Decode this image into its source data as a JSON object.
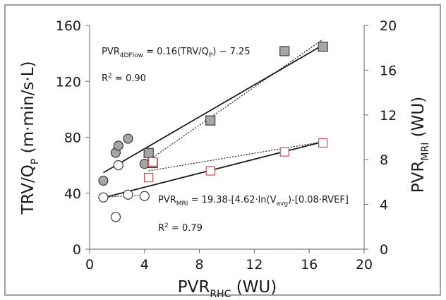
{
  "chart_data": {
    "type": "scatter",
    "x_axis": {
      "label": "PVR",
      "label_subscript": "RHC",
      "label_suffix": " (WU)",
      "range": [
        0,
        20
      ],
      "ticks": [
        "0",
        "4",
        "8",
        "12",
        "16",
        "20"
      ]
    },
    "y_axis_left": {
      "label": "TRV/Q",
      "label_subscript": "P",
      "label_suffix": " (m·min/s·L)",
      "range": [
        0,
        160
      ],
      "ticks": [
        "0",
        "40",
        "80",
        "120",
        "160"
      ]
    },
    "y_axis_right": {
      "label": "PVR",
      "label_subscript": "MRI",
      "label_suffix": " (WU)",
      "range": [
        0,
        20
      ],
      "ticks": [
        "0",
        "4",
        "8",
        "12",
        "16",
        "20"
      ]
    },
    "series": [
      {
        "marker": "circle-gray",
        "axis": "left",
        "points": [
          [
            1.0,
            49
          ],
          [
            1.9,
            69
          ],
          [
            2.1,
            74
          ],
          [
            2.8,
            79
          ],
          [
            4.0,
            61
          ]
        ]
      },
      {
        "marker": "circle-open",
        "axis": "left",
        "points": [
          [
            1.0,
            37
          ],
          [
            1.9,
            23
          ],
          [
            2.1,
            60
          ],
          [
            2.8,
            39
          ],
          [
            4.0,
            38
          ]
        ]
      },
      {
        "marker": "square-gray",
        "axis": "right",
        "points": [
          [
            4.3,
            8.6
          ],
          [
            4.6,
            7.7
          ],
          [
            8.8,
            11.5
          ],
          [
            14.2,
            17.7
          ],
          [
            17.0,
            18.1
          ]
        ]
      },
      {
        "marker": "square-open-red",
        "axis": "right",
        "points": [
          [
            4.3,
            6.4
          ],
          [
            4.6,
            7.8
          ],
          [
            8.8,
            7.0
          ],
          [
            14.2,
            8.7
          ],
          [
            17.0,
            9.5
          ]
        ]
      }
    ],
    "fit_lines": [
      {
        "style": "solid",
        "axis": "left",
        "x": [
          1.0,
          17.0
        ],
        "y": [
          54.7,
          146.0
        ]
      },
      {
        "style": "dotted",
        "axis": "left",
        "x": [
          4.3,
          17.0
        ],
        "y": [
          63.5,
          150.0
        ]
      },
      {
        "style": "solid",
        "axis": "right",
        "x": [
          1.0,
          17.0
        ],
        "y": [
          4.6,
          9.6
        ]
      },
      {
        "style": "dotted",
        "axis": "right",
        "x": [
          4.3,
          17.0
        ],
        "y": [
          7.0,
          9.6
        ]
      },
      {
        "style": "dotted",
        "axis": "right",
        "x": [
          1.0,
          4.2
        ],
        "y": [
          4.65,
          4.85
        ]
      }
    ],
    "annotations": [
      {
        "id": "eq1",
        "parts": [
          "PVR",
          "4DFlow",
          " = 0.16(TRV/Q",
          "P",
          ") − 7.25"
        ]
      },
      {
        "id": "r2a",
        "parts": [
          "R",
          "2",
          " = 0.90"
        ]
      },
      {
        "id": "eq2",
        "parts": [
          "PVR",
          "MRI",
          " = 19.38-[4.62·ln(V",
          "avg",
          ")-[0.08·RVEF]"
        ]
      },
      {
        "id": "r2b",
        "parts": [
          "R",
          "2",
          " = 0.79"
        ]
      }
    ],
    "colors": {
      "marker_gray_fill": "#a6a6a6",
      "marker_stroke": "#3a3a3a",
      "marker_open_red": "#d24a4a",
      "line": "#1a1a1a",
      "frame": "#7f7f7f"
    }
  }
}
